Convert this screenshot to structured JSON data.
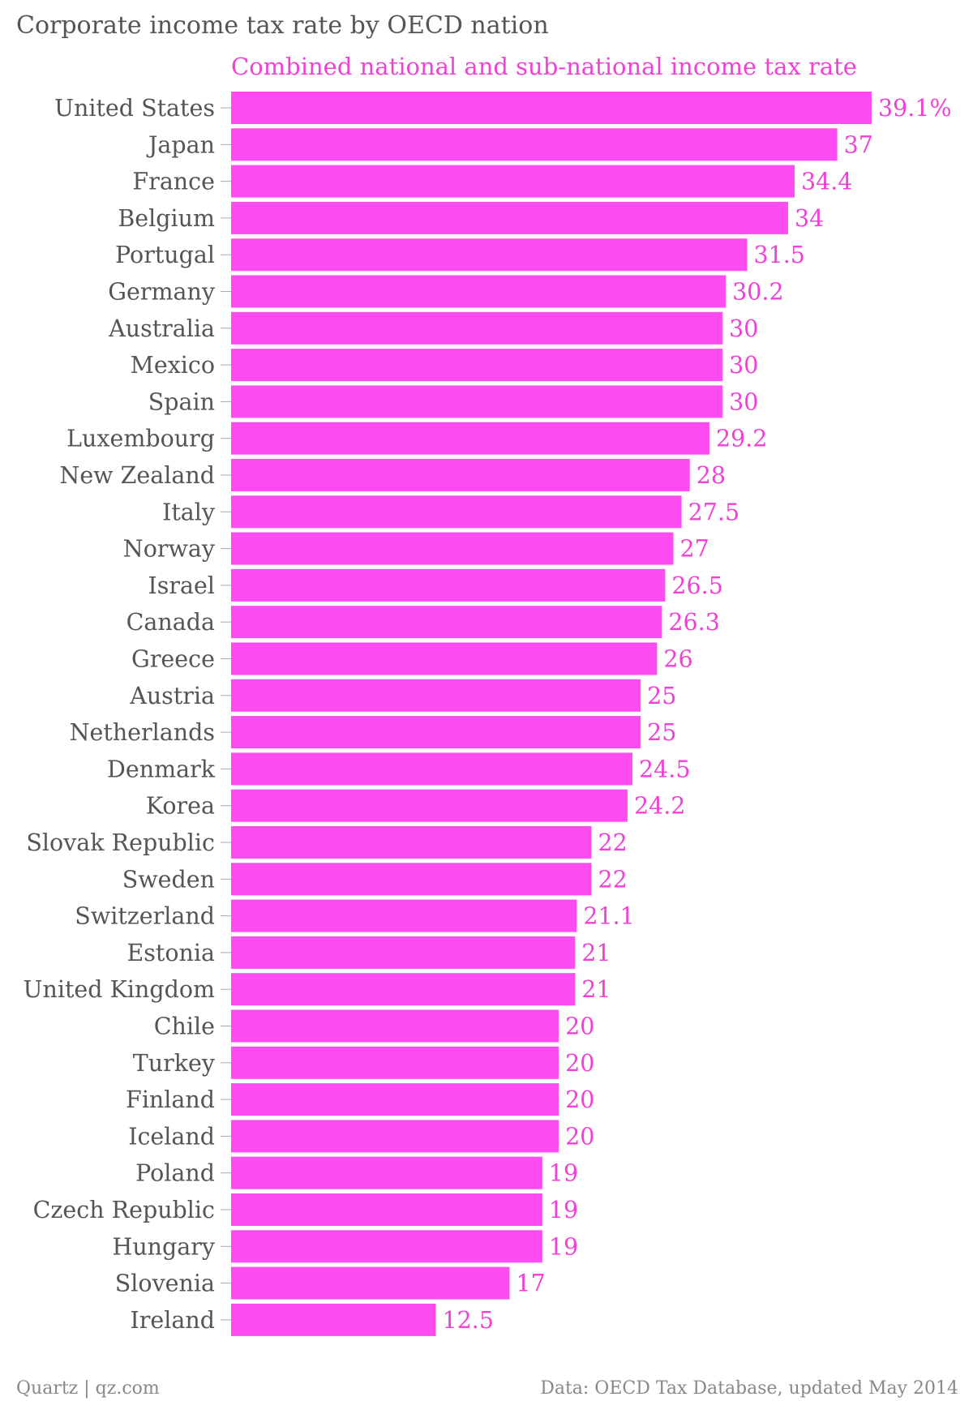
{
  "colors": {
    "bar": "#ff4cf2",
    "label": "#f23fd6",
    "tick": "#aaaaaa",
    "text": "#555555",
    "footer": "#888888"
  },
  "chart_data": {
    "type": "bar",
    "orientation": "horizontal",
    "title": "Corporate income tax rate by OECD nation",
    "subtitle": "Combined national and sub-national income tax rate",
    "value_suffix_first": "%",
    "categories": [
      "United States",
      "Japan",
      "France",
      "Belgium",
      "Portugal",
      "Germany",
      "Australia",
      "Mexico",
      "Spain",
      "Luxembourg",
      "New Zealand",
      "Italy",
      "Norway",
      "Israel",
      "Canada",
      "Greece",
      "Austria",
      "Netherlands",
      "Denmark",
      "Korea",
      "Slovak Republic",
      "Sweden",
      "Switzerland",
      "Estonia",
      "United Kingdom",
      "Chile",
      "Turkey",
      "Finland",
      "Iceland",
      "Poland",
      "Czech Republic",
      "Hungary",
      "Slovenia",
      "Ireland"
    ],
    "values": [
      39.1,
      37,
      34.4,
      34,
      31.5,
      30.2,
      30,
      30,
      30,
      29.2,
      28,
      27.5,
      27,
      26.5,
      26.3,
      26,
      25,
      25,
      24.5,
      24.2,
      22,
      22,
      21.1,
      21,
      21,
      20,
      20,
      20,
      20,
      19,
      19,
      19,
      17,
      12.5
    ],
    "value_labels": [
      "39.1%",
      "37",
      "34.4",
      "34",
      "31.5",
      "30.2",
      "30",
      "30",
      "30",
      "29.2",
      "28",
      "27.5",
      "27",
      "26.5",
      "26.3",
      "26",
      "25",
      "25",
      "24.5",
      "24.2",
      "22",
      "22",
      "21.1",
      "21",
      "21",
      "20",
      "20",
      "20",
      "20",
      "19",
      "19",
      "19",
      "17",
      "12.5"
    ],
    "xlim": [
      0,
      39.1
    ],
    "grid": false,
    "legend": "none"
  },
  "footer": {
    "source_left": "Quartz | qz.com",
    "source_right": "Data: OECD Tax Database, updated May 2014"
  }
}
